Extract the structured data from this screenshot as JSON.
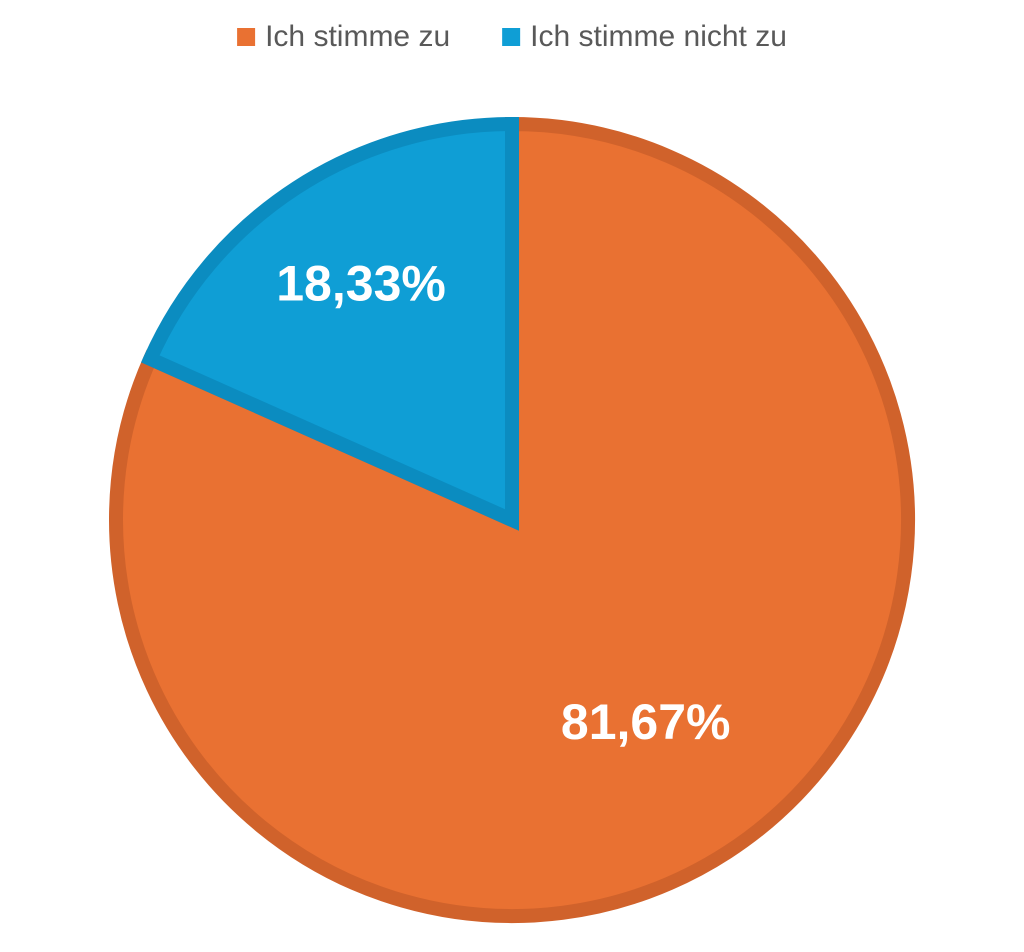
{
  "chart_data": {
    "type": "pie",
    "categories": [
      "Ich stimme zu",
      "Ich stimme nicht zu"
    ],
    "values": [
      81.67,
      18.33
    ],
    "value_labels": [
      "81,67%",
      "18,33%"
    ],
    "colors": [
      "#E97132",
      "#0F9ED5"
    ],
    "legend": "top"
  }
}
